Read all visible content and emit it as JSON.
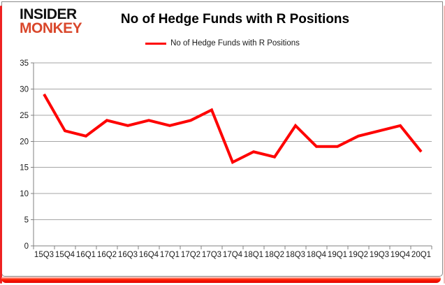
{
  "logo": {
    "line1": "INSIDER",
    "line2": "MONKEY"
  },
  "chart_data": {
    "type": "line",
    "title": "No of Hedge Funds with R Positions",
    "legend_label": "No of Hedge Funds with R Positions",
    "legend_position": "top-center",
    "categories": [
      "15Q3",
      "15Q4",
      "16Q1",
      "16Q2",
      "16Q3",
      "16Q4",
      "17Q1",
      "17Q2",
      "17Q3",
      "17Q4",
      "18Q1",
      "18Q2",
      "18Q3",
      "18Q4",
      "19Q1",
      "19Q2",
      "19Q3",
      "19Q4",
      "20Q1"
    ],
    "values": [
      29,
      22,
      21,
      24,
      23,
      24,
      23,
      24,
      26,
      16,
      18,
      17,
      23,
      19,
      19,
      21,
      22,
      23,
      18
    ],
    "xlabel": "",
    "ylabel": "",
    "ylim": [
      0,
      35
    ],
    "yticks": [
      0,
      5,
      10,
      15,
      20,
      25,
      30,
      35
    ],
    "grid": true,
    "colors": {
      "series": "#fe0000",
      "grid": "#a6a6a6",
      "axis": "#808080",
      "tick_label": "#1a1a1a",
      "logo_insider": "#111111",
      "logo_monkey": "#d9472b",
      "frame_red": "#ee2222",
      "chart_border": "#8a8a8a"
    }
  }
}
